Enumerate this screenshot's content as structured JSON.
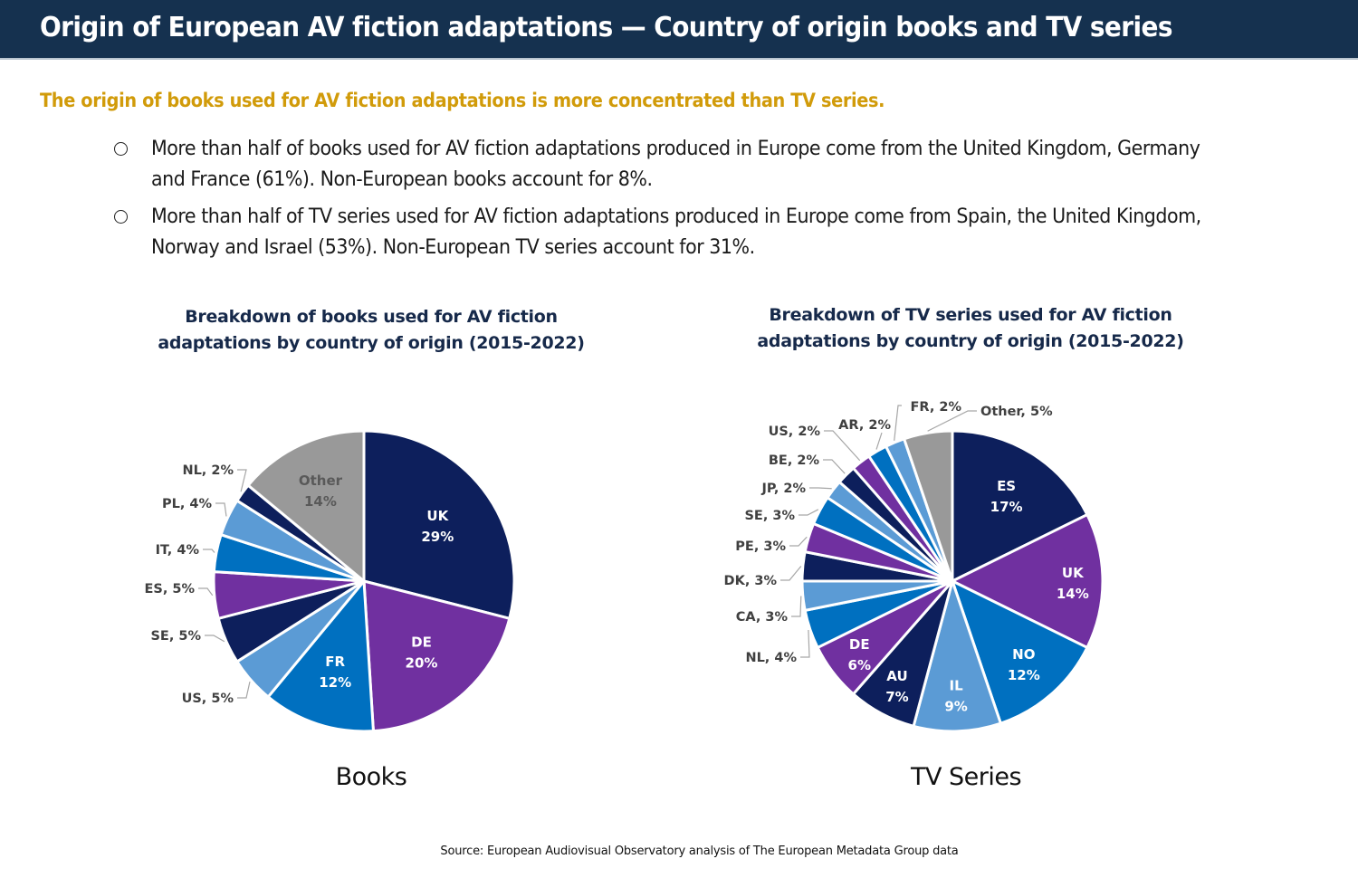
{
  "header": {
    "title": "Origin of European AV fiction adaptations — Country of origin books and TV series"
  },
  "subtitle": "The origin of books used for AV fiction adaptations is more concentrated than TV series.",
  "bullets": [
    {
      "icon": "hollow-circle-bullet",
      "text": "More than half of books used for AV fiction adaptations produced in Europe come from the United Kingdom, Germany and France (61%). Non-European books account for 8%."
    },
    {
      "icon": "hollow-circle-bullet",
      "text": "More than half of TV series used for AV fiction adaptations produced in Europe come from Spain, the United Kingdom, Norway and Israel (53%). Non-European TV series account for 31%."
    }
  ],
  "colors": {
    "navy": "#0d1f5c",
    "purple": "#7030a0",
    "blue": "#0070c0",
    "light_blue": "#5b9bd5",
    "gray": "#999999",
    "header_bg": "#15314f",
    "subtitle": "#d19b0a",
    "chart_title": "#16294a",
    "label_dark": "#404040"
  },
  "source": "Source: European Audiovisual Observatory analysis of The European Metadata Group data",
  "chart_data": [
    {
      "type": "pie",
      "id": "books",
      "title": "Breakdown of books used for AV fiction adaptations by country of origin (2015-2022)",
      "caption": "Books",
      "start": "12 o'clock",
      "direction": "clockwise",
      "unit": "%",
      "slices": [
        {
          "label": "UK",
          "value": 29,
          "color": "#0d1f5c",
          "label_position": "inside"
        },
        {
          "label": "DE",
          "value": 20,
          "color": "#7030a0",
          "label_position": "inside"
        },
        {
          "label": "FR",
          "value": 12,
          "color": "#0070c0",
          "label_position": "inside"
        },
        {
          "label": "US",
          "value": 5,
          "color": "#5b9bd5",
          "label_position": "outside"
        },
        {
          "label": "SE",
          "value": 5,
          "color": "#0d1f5c",
          "label_position": "outside"
        },
        {
          "label": "ES",
          "value": 5,
          "color": "#7030a0",
          "label_position": "outside"
        },
        {
          "label": "IT",
          "value": 4,
          "color": "#0070c0",
          "label_position": "outside"
        },
        {
          "label": "PL",
          "value": 4,
          "color": "#5b9bd5",
          "label_position": "outside"
        },
        {
          "label": "NL",
          "value": 2,
          "color": "#0d1f5c",
          "label_position": "outside"
        },
        {
          "label": "Other",
          "value": 14,
          "color": "#999999",
          "label_position": "inside",
          "label_color": "#595959"
        }
      ]
    },
    {
      "type": "pie",
      "id": "tv",
      "title": "Breakdown of TV series used for AV fiction adaptations by country of origin (2015-2022)",
      "caption": "TV Series",
      "start": "12 o'clock",
      "direction": "clockwise",
      "unit": "%",
      "slices": [
        {
          "label": "ES",
          "value": 17,
          "color": "#0d1f5c",
          "label_position": "inside"
        },
        {
          "label": "UK",
          "value": 14,
          "color": "#7030a0",
          "label_position": "inside"
        },
        {
          "label": "NO",
          "value": 12,
          "color": "#0070c0",
          "label_position": "inside"
        },
        {
          "label": "IL",
          "value": 9,
          "color": "#5b9bd5",
          "label_position": "inside"
        },
        {
          "label": "AU",
          "value": 7,
          "color": "#0d1f5c",
          "label_position": "inside"
        },
        {
          "label": "DE",
          "value": 6,
          "color": "#7030a0",
          "label_position": "inside"
        },
        {
          "label": "NL",
          "value": 4,
          "color": "#0070c0",
          "label_position": "outside"
        },
        {
          "label": "CA",
          "value": 3,
          "color": "#5b9bd5",
          "label_position": "outside"
        },
        {
          "label": "DK",
          "value": 3,
          "color": "#0d1f5c",
          "label_position": "outside"
        },
        {
          "label": "PE",
          "value": 3,
          "color": "#7030a0",
          "label_position": "outside"
        },
        {
          "label": "SE",
          "value": 3,
          "color": "#0070c0",
          "label_position": "outside"
        },
        {
          "label": "JP",
          "value": 2,
          "color": "#5b9bd5",
          "label_position": "outside"
        },
        {
          "label": "BE",
          "value": 2,
          "color": "#0d1f5c",
          "label_position": "outside"
        },
        {
          "label": "US",
          "value": 2,
          "color": "#7030a0",
          "label_position": "outside"
        },
        {
          "label": "AR",
          "value": 2,
          "color": "#0070c0",
          "label_position": "outside"
        },
        {
          "label": "FR",
          "value": 2,
          "color": "#5b9bd5",
          "label_position": "outside"
        },
        {
          "label": "Other",
          "value": 5,
          "color": "#999999",
          "label_position": "outside"
        }
      ]
    }
  ]
}
